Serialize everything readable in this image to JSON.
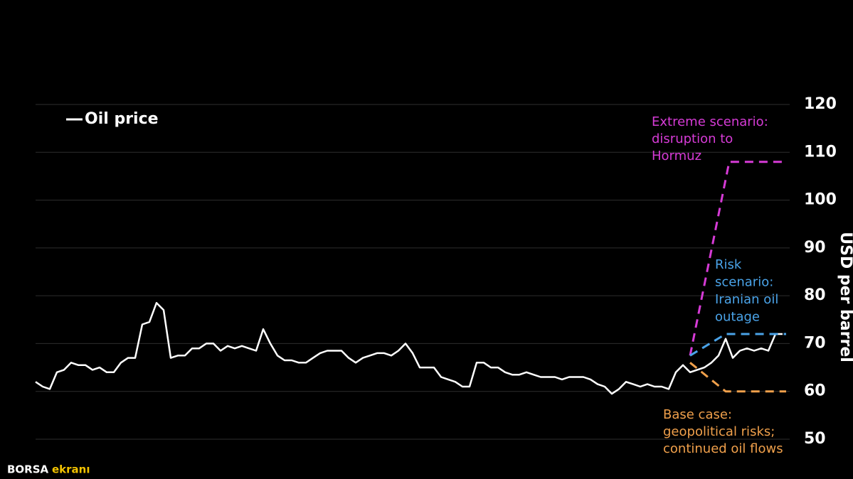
{
  "chart_data": {
    "type": "line",
    "y_axis_label": "USD per barrel",
    "ylim": [
      50,
      120
    ],
    "yticks": [
      50,
      60,
      70,
      80,
      90,
      100,
      110,
      120
    ],
    "xlim": [
      0,
      105.5
    ],
    "grid": true,
    "legend": "top-left",
    "series": [
      {
        "name": "Oil price",
        "color": "#ffffff",
        "dashed": false,
        "x": [
          0,
          1,
          2,
          3,
          4,
          5,
          6,
          7,
          8,
          9,
          10,
          11,
          12,
          13,
          14,
          15,
          16,
          17,
          18,
          19,
          20,
          21,
          22,
          23,
          24,
          25,
          26,
          27,
          28,
          29,
          30,
          31,
          32,
          33,
          34,
          35,
          36,
          37,
          38,
          39,
          40,
          41,
          42,
          43,
          44,
          45,
          46,
          47,
          48,
          49,
          50,
          51,
          52,
          53,
          54,
          55,
          56,
          57,
          58,
          59,
          60,
          61,
          62,
          63,
          64,
          65,
          66,
          67,
          68,
          69,
          70,
          71,
          72,
          73,
          74,
          75,
          76,
          77,
          78,
          79,
          80,
          81,
          82,
          83,
          84,
          85,
          86,
          87,
          88,
          89,
          90,
          91,
          92,
          93,
          94,
          95,
          96,
          97,
          98,
          99,
          100,
          101,
          102,
          103,
          104,
          105
        ],
        "values": [
          62,
          61,
          60.5,
          64,
          64.5,
          66,
          65.5,
          65.5,
          64.5,
          65,
          64,
          64,
          66,
          67,
          67,
          74,
          74.5,
          78.5,
          77,
          67,
          67.5,
          67.5,
          69,
          69,
          70,
          70,
          68.5,
          69.5,
          69,
          69.5,
          69,
          68.5,
          73,
          70,
          67.5,
          66.5,
          66.5,
          66,
          66,
          67,
          68,
          68.5,
          68.5,
          68.5,
          67,
          66,
          67,
          67.5,
          68,
          68,
          67.5,
          68.5,
          70,
          68,
          65,
          65,
          65,
          63,
          62.5,
          62,
          61,
          61,
          66,
          66,
          65,
          65,
          64,
          63.5,
          63.5,
          64,
          63.5,
          63,
          63,
          63,
          62.5,
          63,
          63,
          63,
          62.5,
          61.5,
          61,
          59.5,
          60.5,
          62,
          61.5,
          61,
          61.5,
          61,
          61,
          60.5,
          64,
          65.5,
          64,
          64.5,
          65,
          66,
          67.5,
          71,
          67,
          68.5,
          69,
          68.5,
          69,
          68.5,
          72,
          72
        ]
      },
      {
        "label_lines": [
          "Extreme scenario:",
          "disruption to",
          "Hormuz"
        ],
        "color": "#d63bd6",
        "dashed": true,
        "x": [
          92,
          97.5,
          105.5
        ],
        "values": [
          67.5,
          108,
          108
        ]
      },
      {
        "label_lines": [
          "Risk",
          "scenario:",
          "Iranian oil",
          "outage"
        ],
        "color": "#4aa3e8",
        "dashed": true,
        "x": [
          92,
          97,
          105.5
        ],
        "values": [
          67.5,
          72,
          72
        ]
      },
      {
        "label_lines": [
          "Base case:",
          "geopolitical risks;",
          "continued oil flows"
        ],
        "color": "#f0a04b",
        "dashed": true,
        "x": [
          92,
          97,
          105.5
        ],
        "values": [
          66,
          60,
          60
        ]
      }
    ]
  },
  "watermark": {
    "brand": "BORSA",
    "suffix": "ekranı"
  }
}
